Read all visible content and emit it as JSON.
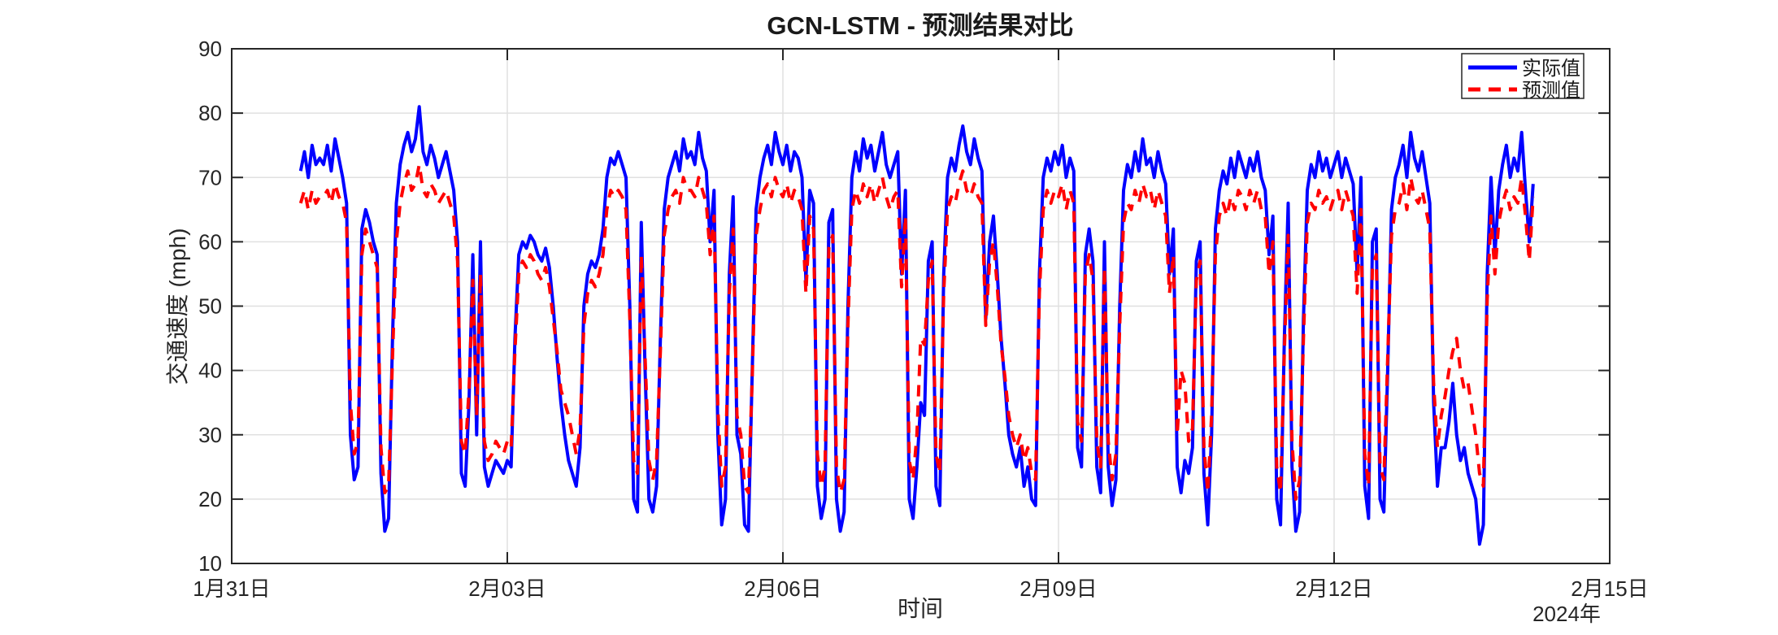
{
  "figure": {
    "title": "GCN-LSTM - 预测结果对比",
    "xlabel": "时间",
    "ylabel": "交通速度 (mph)",
    "year_label": "2024年"
  },
  "legend": {
    "position": "top-right",
    "items": [
      {
        "label": "实际值",
        "color": "#0000ff",
        "style": "solid"
      },
      {
        "label": "预测值",
        "color": "#ff0000",
        "style": "dashed"
      }
    ]
  },
  "colors": {
    "actual": "#0000ff",
    "predicted": "#ff0000",
    "grid": "#e0e0e0",
    "axis": "#262626",
    "background": "#ffffff"
  },
  "chart_data": {
    "type": "line",
    "title": "GCN-LSTM - 预测结果对比",
    "xlabel": "时间",
    "ylabel": "交通速度 (mph)",
    "grid": true,
    "legend_position": "top-right",
    "ylim": [
      10,
      90
    ],
    "yticks": [
      10,
      20,
      30,
      40,
      50,
      60,
      70,
      80,
      90
    ],
    "xlim_days": [
      0,
      15
    ],
    "xticks": [
      {
        "day": 0,
        "label": "1月31日"
      },
      {
        "day": 3,
        "label": "2月03日"
      },
      {
        "day": 6,
        "label": "2月06日"
      },
      {
        "day": 9,
        "label": "2月09日"
      },
      {
        "day": 12,
        "label": "2月12日"
      },
      {
        "day": 15,
        "label": "2月15日"
      }
    ],
    "x_axis_year": "2024年",
    "sampling": {
      "start_hour": 18,
      "interval_hours": 1,
      "start_date": "1月31日"
    },
    "series": [
      {
        "name": "实际值",
        "color": "#0000ff",
        "style": "solid",
        "values": [
          71,
          74,
          70,
          75,
          72,
          73,
          72,
          75,
          71,
          76,
          73,
          70,
          66,
          30,
          23,
          25,
          62,
          65,
          63,
          60,
          58,
          24,
          15,
          17,
          45,
          66,
          72,
          75,
          77,
          74,
          76,
          81,
          74,
          72,
          75,
          73,
          70,
          72,
          74,
          71,
          68,
          60,
          24,
          22,
          35,
          58,
          30,
          60,
          25,
          22,
          24,
          26,
          25,
          24,
          26,
          25,
          45,
          58,
          60,
          59,
          61,
          60,
          58,
          57,
          59,
          56,
          50,
          42,
          35,
          30,
          26,
          24,
          22,
          28,
          50,
          55,
          57,
          56,
          58,
          62,
          70,
          73,
          72,
          74,
          72,
          70,
          50,
          20,
          18,
          63,
          40,
          20,
          18,
          22,
          45,
          65,
          70,
          72,
          74,
          71,
          76,
          73,
          74,
          72,
          77,
          73,
          71,
          60,
          68,
          30,
          16,
          20,
          55,
          67,
          30,
          27,
          16,
          15,
          40,
          65,
          70,
          73,
          75,
          72,
          77,
          74,
          72,
          75,
          71,
          74,
          73,
          70,
          54,
          68,
          66,
          22,
          17,
          20,
          63,
          65,
          20,
          15,
          18,
          50,
          70,
          74,
          71,
          76,
          73,
          75,
          71,
          74,
          77,
          72,
          70,
          72,
          74,
          55,
          68,
          20,
          17,
          25,
          35,
          33,
          57,
          60,
          22,
          19,
          55,
          70,
          73,
          71,
          75,
          78,
          74,
          72,
          76,
          73,
          71,
          48,
          60,
          64,
          55,
          45,
          38,
          30,
          27,
          25,
          28,
          22,
          25,
          20,
          19,
          55,
          70,
          73,
          71,
          74,
          72,
          75,
          70,
          73,
          71,
          28,
          25,
          58,
          62,
          57,
          25,
          21,
          60,
          25,
          19,
          23,
          50,
          68,
          72,
          70,
          74,
          71,
          76,
          72,
          73,
          70,
          74,
          71,
          69,
          55,
          62,
          25,
          21,
          26,
          24,
          28,
          57,
          60,
          24,
          16,
          30,
          62,
          68,
          71,
          69,
          73,
          70,
          74,
          72,
          70,
          73,
          71,
          74,
          70,
          68,
          58,
          64,
          20,
          16,
          45,
          66,
          25,
          15,
          18,
          48,
          68,
          72,
          70,
          74,
          71,
          73,
          70,
          72,
          74,
          70,
          73,
          71,
          69,
          55,
          70,
          22,
          17,
          60,
          62,
          20,
          18,
          40,
          65,
          70,
          72,
          75,
          70,
          77,
          73,
          71,
          74,
          70,
          66,
          35,
          22,
          28,
          28,
          32,
          38,
          30,
          26,
          28,
          24,
          22,
          20,
          13,
          16,
          55,
          70,
          58,
          68,
          72,
          75,
          70,
          73,
          71,
          77,
          68,
          60,
          69
        ]
      },
      {
        "name": "预测值",
        "color": "#ff0000",
        "style": "dashed",
        "values": [
          66,
          68,
          65,
          68,
          66,
          67,
          67,
          68,
          66,
          69,
          67,
          66,
          63,
          35,
          27,
          29,
          58,
          62,
          60,
          58,
          56,
          28,
          21,
          22,
          42,
          60,
          66,
          69,
          71,
          68,
          69,
          72,
          68,
          67,
          69,
          68,
          66,
          67,
          68,
          66,
          64,
          57,
          29,
          27,
          37,
          54,
          33,
          55,
          29,
          26,
          27,
          29,
          28,
          27,
          29,
          28,
          43,
          55,
          57,
          56,
          58,
          57,
          55,
          54,
          56,
          53,
          48,
          43,
          37,
          35,
          33,
          30,
          27,
          31,
          47,
          52,
          54,
          53,
          55,
          58,
          65,
          68,
          67,
          68,
          67,
          65,
          48,
          26,
          24,
          58,
          42,
          26,
          23,
          26,
          43,
          61,
          65,
          67,
          68,
          66,
          70,
          68,
          68,
          67,
          70,
          68,
          66,
          58,
          64,
          34,
          22,
          25,
          52,
          62,
          33,
          30,
          22,
          21,
          39,
          61,
          65,
          68,
          69,
          67,
          70,
          68,
          67,
          69,
          66,
          68,
          67,
          65,
          52,
          64,
          62,
          27,
          22,
          25,
          59,
          61,
          25,
          21,
          23,
          47,
          65,
          68,
          66,
          69,
          67,
          69,
          66,
          68,
          70,
          67,
          65,
          67,
          68,
          53,
          64,
          26,
          23,
          30,
          45,
          44,
          54,
          57,
          27,
          24,
          52,
          65,
          67,
          66,
          69,
          71,
          68,
          67,
          69,
          67,
          66,
          47,
          57,
          60,
          53,
          44,
          39,
          33,
          30,
          28,
          30,
          26,
          28,
          24,
          23,
          52,
          65,
          68,
          66,
          68,
          67,
          69,
          65,
          68,
          66,
          32,
          29,
          55,
          58,
          54,
          29,
          25,
          56,
          29,
          23,
          27,
          47,
          63,
          66,
          65,
          68,
          66,
          69,
          67,
          68,
          65,
          68,
          66,
          64,
          52,
          58,
          30,
          40,
          38,
          29,
          31,
          54,
          57,
          28,
          21,
          33,
          58,
          64,
          66,
          64,
          67,
          65,
          68,
          67,
          65,
          68,
          66,
          68,
          65,
          64,
          55,
          60,
          25,
          21,
          43,
          61,
          29,
          20,
          23,
          45,
          63,
          66,
          65,
          68,
          66,
          67,
          65,
          67,
          68,
          65,
          68,
          66,
          64,
          52,
          65,
          27,
          22,
          56,
          58,
          25,
          23,
          42,
          61,
          65,
          66,
          69,
          65,
          70,
          67,
          66,
          68,
          65,
          62,
          38,
          28,
          33,
          36,
          40,
          43,
          45,
          40,
          37,
          38,
          34,
          30,
          24,
          22,
          51,
          64,
          55,
          63,
          66,
          68,
          65,
          67,
          66,
          70,
          64,
          57,
          67
        ]
      }
    ]
  }
}
